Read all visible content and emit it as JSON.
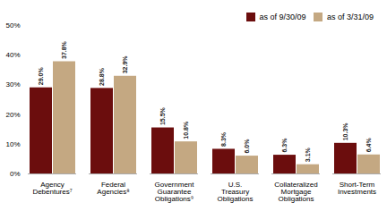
{
  "chart_data": {
    "type": "bar",
    "categories": [
      "Agency\nDebentures⁷",
      "Federal\nAgencies⁸",
      "Government\nGuarantee\nObligations⁹",
      "U.S.\nTreasury\nObligations",
      "Collateralized\nMortgage\nObligations",
      "Short-Term\nInvestments"
    ],
    "series": [
      {
        "name": "as of 9/30/09",
        "color": "#6B0D0D",
        "values": [
          29.0,
          28.8,
          15.5,
          8.3,
          6.3,
          10.3
        ],
        "value_labels": [
          "29.0%",
          "28.8%",
          "15.5%",
          "8.3%",
          "6.3%",
          "10.3%"
        ]
      },
      {
        "name": "as of 3/31/09",
        "color": "#C4A882",
        "values": [
          37.8,
          32.9,
          10.8,
          6.0,
          3.1,
          6.4
        ],
        "value_labels": [
          "37.8%",
          "32.9%",
          "10.8%",
          "6.0%",
          "3.1%",
          "6.4%"
        ]
      }
    ],
    "ylim": [
      0,
      50
    ],
    "yticks": [
      {
        "value": 0,
        "label": "0%"
      },
      {
        "value": 10,
        "label": "10%"
      },
      {
        "value": 20,
        "label": "20%"
      },
      {
        "value": 30,
        "label": "30%"
      },
      {
        "value": 40,
        "label": "40%"
      },
      {
        "value": 50,
        "label": "50%"
      }
    ],
    "grid": false,
    "legend": "upper right",
    "data_labels": true
  }
}
